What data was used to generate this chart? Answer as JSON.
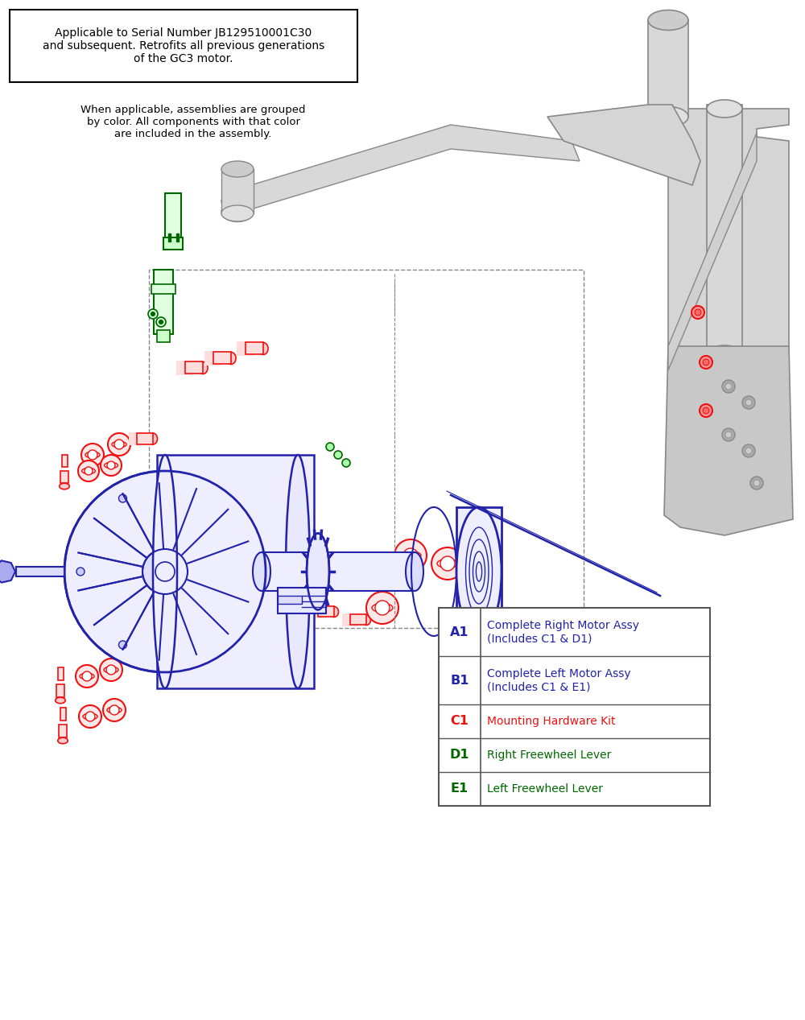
{
  "fig_width": 10.0,
  "fig_height": 12.67,
  "bg_color": "#ffffff",
  "serial_box_text": "Applicable to Serial Number JB129510001C30\nand subsequent. Retrofits all previous generations\nof the GC3 motor.",
  "note_text": "When applicable, assemblies are grouped\nby color. All components with that color\nare included in the assembly.",
  "legend_rows": [
    {
      "code": "A1",
      "desc": "Complete Right Motor Assy\n(Includes C1 & D1)",
      "code_color": "#2222aa",
      "desc_color": "#2222aa"
    },
    {
      "code": "B1",
      "desc": "Complete Left Motor Assy\n(Includes C1 & E1)",
      "code_color": "#2222aa",
      "desc_color": "#2222aa"
    },
    {
      "code": "C1",
      "desc": "Mounting Hardware Kit",
      "code_color": "#ee1111",
      "desc_color": "#ee1111"
    },
    {
      "code": "D1",
      "desc": "Right Freewheel Lever",
      "code_color": "#006600",
      "desc_color": "#006600"
    },
    {
      "code": "E1",
      "desc": "Left Freewheel Lever",
      "code_color": "#006600",
      "desc_color": "#006600"
    }
  ],
  "blue": "#2222aa",
  "red": "#ee1111",
  "green": "#006600",
  "gray": "#999999",
  "lgray": "#cccccc",
  "dgray": "#888888"
}
